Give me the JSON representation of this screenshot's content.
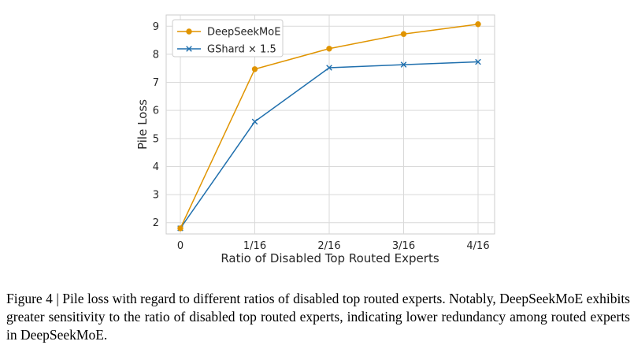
{
  "chart_data": {
    "type": "line",
    "categories": [
      "0",
      "1/16",
      "2/16",
      "3/16",
      "4/16"
    ],
    "x": [
      0,
      1,
      2,
      3,
      4
    ],
    "series": [
      {
        "name": "DeepSeekMoE",
        "values": [
          1.8,
          7.47,
          8.2,
          8.72,
          9.07
        ],
        "color": "#e09400",
        "marker": "circle"
      },
      {
        "name": "GShard × 1.5",
        "values": [
          1.8,
          5.6,
          7.52,
          7.63,
          7.73
        ],
        "color": "#1f6fad",
        "marker": "x"
      }
    ],
    "xlabel": "Ratio of Disabled Top Routed Experts",
    "ylabel": "Pile Loss",
    "yticks": [
      2,
      3,
      4,
      5,
      6,
      7,
      8,
      9
    ],
    "ylim": [
      1.6,
      9.4
    ],
    "grid": true,
    "legend_position": "top-left"
  },
  "caption": "Figure 4 | Pile loss with regard to different ratios of disabled top routed experts. Notably, DeepSeekMoE exhibits greater sensitivity to the ratio of disabled top routed experts, indicating lower redundancy among routed experts in DeepSeekMoE."
}
